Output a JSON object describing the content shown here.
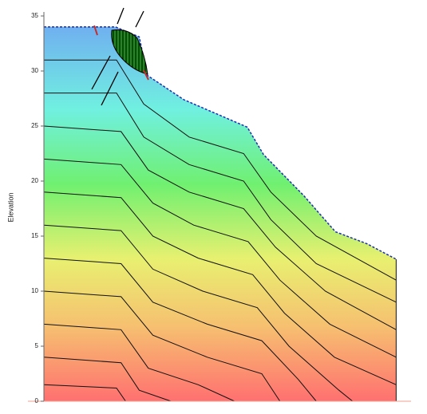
{
  "chart_data": {
    "type": "profile",
    "y_label": "Elevation",
    "xlim": [
      0,
      40
    ],
    "ylim": [
      0,
      35
    ],
    "yticks": [
      0,
      5,
      10,
      15,
      20,
      25,
      30,
      35
    ],
    "surface": {
      "color": "#1a2fb0",
      "x": [
        0,
        7.9,
        10.5,
        11.4,
        15.4,
        22.4,
        24.2,
        28.6,
        32.1,
        35.6,
        38.8
      ],
      "y": [
        34,
        34,
        33.1,
        29.6,
        27.4,
        24.9,
        22.4,
        18.7,
        15.4,
        14.3,
        12.9
      ]
    },
    "layers": [
      {
        "x": [
          0,
          8,
          11,
          16,
          22,
          25,
          30,
          38.8
        ],
        "y": [
          31,
          31,
          27,
          24,
          22.5,
          19,
          15,
          11
        ]
      },
      {
        "x": [
          0,
          8,
          11,
          16,
          22,
          25,
          30,
          38.8
        ],
        "y": [
          28,
          28,
          24,
          21.5,
          20,
          16.5,
          12.5,
          9
        ]
      },
      {
        "x": [
          0,
          8.5,
          11.5,
          16,
          22,
          25.5,
          31,
          38.8
        ],
        "y": [
          25,
          24.5,
          21,
          19,
          17.5,
          14,
          10,
          6.5
        ]
      },
      {
        "x": [
          0,
          8.5,
          12,
          16.5,
          22.5,
          26,
          31.5,
          38.8
        ],
        "y": [
          22,
          21.5,
          18,
          16,
          14.5,
          11,
          7,
          4
        ]
      },
      {
        "x": [
          0,
          8.5,
          12,
          17,
          23,
          26.5,
          32,
          38.8
        ],
        "y": [
          19,
          18.5,
          15,
          13,
          11.5,
          8,
          4,
          1.5
        ]
      },
      {
        "x": [
          0,
          8.5,
          12,
          17.5,
          23.5,
          27,
          32.5,
          34
        ],
        "y": [
          16,
          15.5,
          12,
          10,
          8.5,
          5,
          1,
          0
        ]
      },
      {
        "x": [
          0,
          8.5,
          12,
          18,
          24,
          28,
          30
        ],
        "y": [
          13,
          12.5,
          9,
          7,
          5.5,
          2,
          0
        ]
      },
      {
        "x": [
          0,
          8.5,
          12,
          18,
          24,
          26
        ],
        "y": [
          10,
          9.5,
          6,
          4,
          2.5,
          0
        ]
      },
      {
        "x": [
          0,
          8.5,
          11.5,
          17,
          21
        ],
        "y": [
          7,
          6.5,
          3,
          1.5,
          0
        ]
      },
      {
        "x": [
          0,
          8.5,
          10.5,
          14
        ],
        "y": [
          4,
          3.5,
          1,
          0
        ]
      },
      {
        "x": [
          0,
          8,
          9
        ],
        "y": [
          1.5,
          1.2,
          0
        ]
      }
    ]
  }
}
